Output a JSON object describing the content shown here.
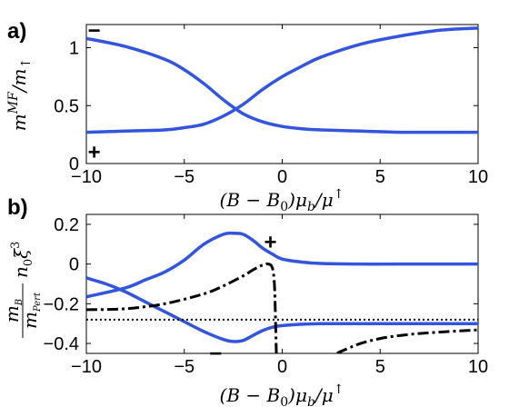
{
  "chart_data": [
    {
      "panel": "a)",
      "type": "line",
      "xlabel": "(B − B₀)μ_b/μ↑",
      "ylabel": "m^{MF}/m↑",
      "xlim": [
        -10,
        10
      ],
      "ylim": [
        0,
        1.2
      ],
      "xticks": [
        "−10",
        "−5",
        "0",
        "5",
        "10"
      ],
      "yticks": [
        "0",
        "0.5",
        "1"
      ],
      "annotations": [
        {
          "text": "−",
          "x": -9.6,
          "y": 1.15
        },
        {
          "text": "+",
          "x": -9.6,
          "y": 0.1
        }
      ],
      "series": [
        {
          "color": "#3355dd",
          "style": "solid",
          "x": [
            -10,
            -8,
            -6,
            -5,
            -4,
            -3,
            -2,
            -1,
            0,
            1,
            2,
            4,
            6,
            8,
            10
          ],
          "y": [
            1.08,
            1.01,
            0.9,
            0.81,
            0.69,
            0.55,
            0.43,
            0.36,
            0.32,
            0.3,
            0.29,
            0.28,
            0.27,
            0.27,
            0.27
          ]
        },
        {
          "color": "#3355dd",
          "style": "solid",
          "x": [
            -10,
            -8,
            -6,
            -5,
            -4,
            -3,
            -2,
            -1,
            0,
            1,
            2,
            4,
            6,
            8,
            10
          ],
          "y": [
            0.27,
            0.28,
            0.29,
            0.31,
            0.34,
            0.41,
            0.51,
            0.64,
            0.75,
            0.84,
            0.92,
            1.03,
            1.1,
            1.15,
            1.17
          ]
        }
      ]
    },
    {
      "panel": "b)",
      "type": "line",
      "xlabel": "(B − B₀)μ_b/μ↑",
      "ylabel": "m_B / m^{Pert} n₀ξ³",
      "xlim": [
        -10,
        10
      ],
      "ylim": [
        -0.45,
        0.25
      ],
      "xticks": [
        "−10",
        "−5",
        "0",
        "5",
        "10"
      ],
      "yticks": [
        "0.2",
        "0",
        "−0.2",
        "−0.4"
      ],
      "annotations": [
        {
          "text": "+",
          "x": -0.6,
          "y": 0.11
        },
        {
          "text": "−",
          "x": -3.4,
          "y": -0.45
        }
      ],
      "series": [
        {
          "color": "#3355dd",
          "style": "solid",
          "x": [
            -10,
            -8,
            -7,
            -6,
            -5,
            -4,
            -3,
            -2.5,
            -2,
            -1.5,
            -1,
            -0.5,
            0,
            1,
            2,
            4,
            6,
            10
          ],
          "y": [
            -0.165,
            -0.12,
            -0.08,
            -0.04,
            0.02,
            0.1,
            0.15,
            0.155,
            0.15,
            0.12,
            0.08,
            0.05,
            0.025,
            0.01,
            0.003,
            0.0,
            0.0,
            0.0
          ]
        },
        {
          "color": "#3355dd",
          "style": "solid",
          "x": [
            -10,
            -9,
            -8,
            -7,
            -6,
            -5,
            -4,
            -3,
            -2.5,
            -2,
            -1.5,
            -1,
            -0.5,
            0,
            1,
            2,
            4,
            6,
            10
          ],
          "y": [
            -0.07,
            -0.1,
            -0.14,
            -0.19,
            -0.24,
            -0.29,
            -0.34,
            -0.38,
            -0.39,
            -0.385,
            -0.36,
            -0.335,
            -0.318,
            -0.31,
            -0.303,
            -0.3,
            -0.3,
            -0.3,
            -0.3
          ]
        },
        {
          "color": "#000000",
          "style": "dashdot",
          "x": [
            -10,
            -8,
            -6,
            -4,
            -3,
            -2,
            -1.5,
            -1,
            -0.7,
            -0.5,
            -0.4,
            -0.35,
            -0.3
          ],
          "y": [
            -0.23,
            -0.225,
            -0.2,
            -0.15,
            -0.11,
            -0.06,
            -0.03,
            -0.005,
            0.0,
            -0.02,
            -0.1,
            -0.25,
            -0.45
          ]
        },
        {
          "color": "#000000",
          "style": "dashdot",
          "x": [
            2.8,
            3,
            4,
            5,
            6,
            7,
            8,
            9,
            10
          ],
          "y": [
            -0.45,
            -0.44,
            -0.4,
            -0.375,
            -0.36,
            -0.35,
            -0.343,
            -0.337,
            -0.332
          ]
        },
        {
          "color": "#000000",
          "style": "dotted",
          "x": [
            -10,
            10
          ],
          "y": [
            -0.28,
            -0.28
          ]
        }
      ]
    }
  ]
}
